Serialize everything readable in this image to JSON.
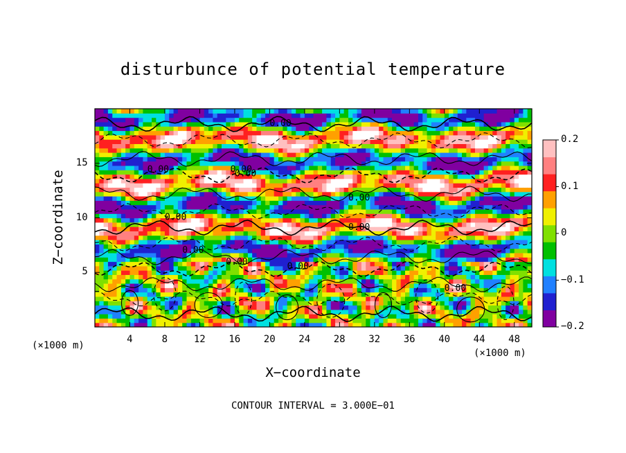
{
  "chart_data": {
    "type": "heatmap",
    "title": "disturbunce of potential temperature",
    "xlabel": "X−coordinate",
    "ylabel": "Z−coordinate",
    "x_unit": "(×1000 m)",
    "x_ticks": [
      4,
      8,
      12,
      16,
      20,
      24,
      28,
      32,
      36,
      40,
      44,
      48
    ],
    "y_ticks": [
      5,
      10,
      15
    ],
    "xlim": [
      0,
      50
    ],
    "ylim": [
      0,
      20
    ],
    "colorbar_ticks": [
      "0.2",
      "0.1",
      "0",
      "−0.1",
      "−0.2"
    ],
    "colorbar_range": [
      -0.2,
      0.2
    ],
    "colorbar_colors": [
      "#8000a0",
      "#2020d0",
      "#2080ff",
      "#00e0e0",
      "#00c000",
      "#80e000",
      "#f0f000",
      "#ffa000",
      "#ff2020",
      "#ff8080",
      "#ffc0c0"
    ],
    "contour_labels": [
      "0.00",
      "0.00",
      "0.00",
      "0.00",
      "0.00",
      "0.00",
      "0.00",
      "0.00",
      "0.00",
      "0.00",
      "0.00"
    ],
    "footer": "CONTOUR INTERVAL = 3.000E−01"
  }
}
